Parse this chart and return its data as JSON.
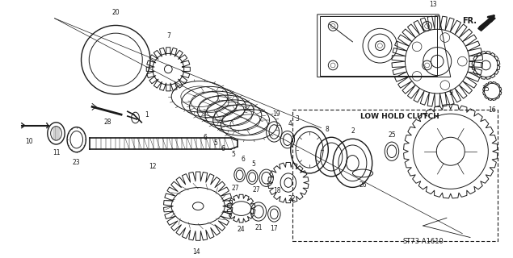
{
  "background_color": "#ffffff",
  "diagram_code": "ST73-A1610",
  "fr_label": "FR.",
  "low_hold_clutch_label": "LOW HOLD CLUTCH",
  "fig_width": 6.35,
  "fig_height": 3.2,
  "dpi": 100
}
